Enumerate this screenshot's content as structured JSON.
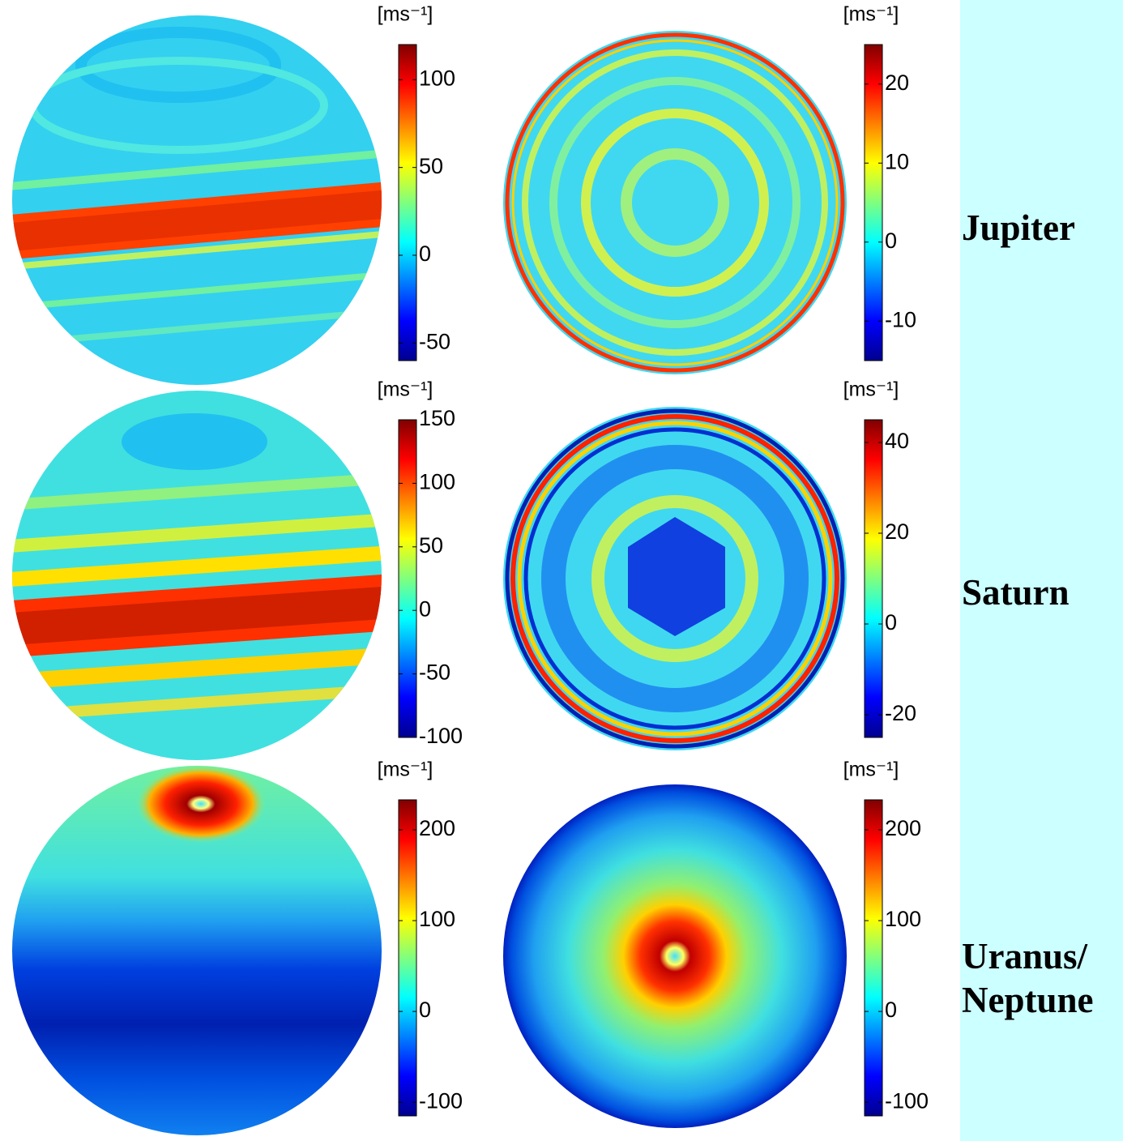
{
  "chart_data": [
    {
      "type": "sphere-map",
      "view": "side",
      "unit": "[ms⁻¹]",
      "ylim": [
        -60,
        120
      ],
      "yticks": [
        -50,
        0,
        50,
        100
      ]
    },
    {
      "type": "sphere-map",
      "view": "pole",
      "unit": "[ms⁻¹]",
      "ylim": [
        -15,
        25
      ],
      "yticks": [
        -10,
        0,
        10,
        20
      ]
    },
    {
      "type": "sphere-map",
      "view": "side",
      "unit": "[ms⁻¹]",
      "ylim": [
        -100,
        150
      ],
      "yticks": [
        -100,
        -50,
        0,
        50,
        100,
        150
      ]
    },
    {
      "type": "sphere-map",
      "view": "pole",
      "unit": "[ms⁻¹]",
      "ylim": [
        -25,
        45
      ],
      "yticks": [
        -20,
        0,
        20,
        40
      ]
    },
    {
      "type": "sphere-map",
      "view": "side",
      "unit": "[ms⁻¹]",
      "ylim": [
        -115,
        233
      ],
      "yticks": [
        -100,
        0,
        100,
        200
      ]
    },
    {
      "type": "sphere-map",
      "view": "pole",
      "unit": "[ms⁻¹]",
      "ylim": [
        -115,
        233
      ],
      "yticks": [
        -100,
        0,
        100,
        200
      ]
    }
  ],
  "row_labels": [
    "Jupiter",
    "Saturn",
    "Uranus/\nNeptune"
  ]
}
